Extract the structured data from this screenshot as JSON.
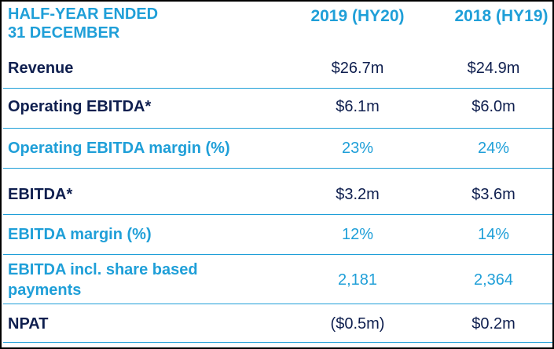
{
  "table": {
    "header": {
      "title_line1": "HALF-YEAR ENDED",
      "title_line2": "31 DECEMBER",
      "col1": "2019 (HY20)",
      "col2": "2018 (HY19)"
    },
    "rows": [
      {
        "label": "Revenue",
        "v2019": "$26.7m",
        "v2018": "$24.9m",
        "style": "dark"
      },
      {
        "label": "Operating EBITDA*",
        "v2019": "$6.1m",
        "v2018": "$6.0m",
        "style": "dark"
      },
      {
        "label": "Operating EBITDA margin (%)",
        "v2019": "23%",
        "v2018": "24%",
        "style": "light"
      },
      {
        "label": "EBITDA*",
        "v2019": "$3.2m",
        "v2018": "$3.6m",
        "style": "dark"
      },
      {
        "label": "EBITDA margin (%)",
        "v2019": "12%",
        "v2018": "14%",
        "style": "light"
      },
      {
        "label_line1": "EBITDA incl. share based",
        "label_line2": "payments",
        "v2019": "2,181",
        "v2018": "2,364",
        "style": "light"
      },
      {
        "label": "NPAT",
        "v2019": "($0.5m)",
        "v2018": "$0.2m",
        "style": "dark"
      }
    ]
  },
  "colors": {
    "accent_blue": "#1f9fd8",
    "dark_navy": "#0f1f4f",
    "border": "#000000"
  }
}
